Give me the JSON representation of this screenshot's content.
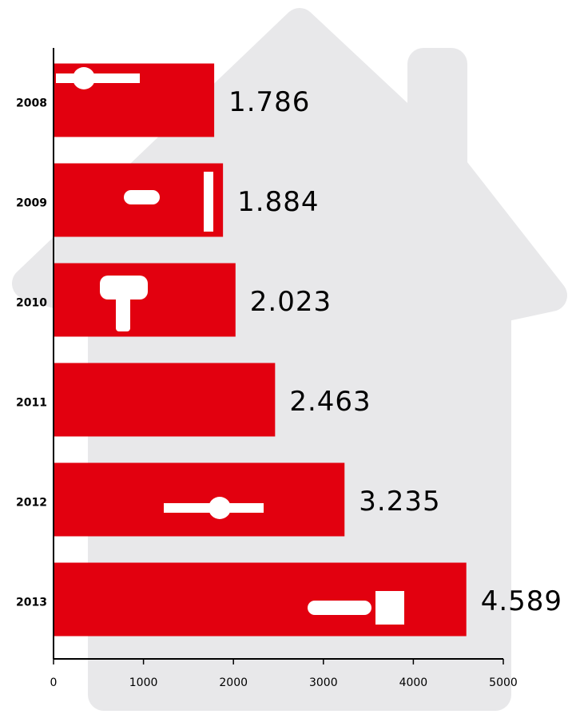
{
  "chart_data": {
    "type": "bar",
    "orientation": "horizontal",
    "categories": [
      "2008",
      "2009",
      "2010",
      "2011",
      "2012",
      "2013"
    ],
    "values": [
      1786,
      1884,
      2023,
      2463,
      3235,
      4589
    ],
    "value_labels": [
      "1.786",
      "1.884",
      "2.023",
      "2.463",
      "3.235",
      "4.589"
    ],
    "color": "#e2000f",
    "xlim": [
      0,
      5000
    ],
    "xticks": [
      0,
      1000,
      2000,
      3000,
      4000,
      5000
    ]
  }
}
